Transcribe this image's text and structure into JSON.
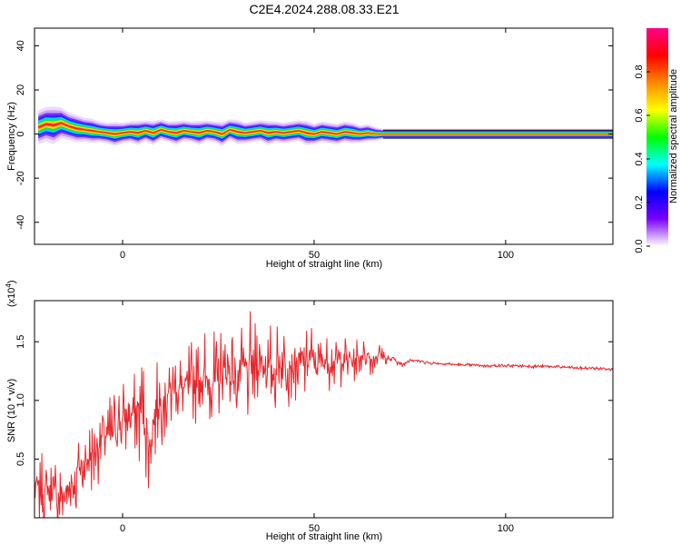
{
  "title": "C2E4.2024.288.08.33.E21",
  "chart_data": [
    {
      "type": "heatmap",
      "xlabel": "Height of straight line (km)",
      "ylabel": "Frequency (Hz)",
      "xlim": [
        -23,
        128
      ],
      "ylim": [
        -50,
        48
      ],
      "x_ticks": [
        0,
        50,
        100
      ],
      "y_ticks": [
        -40,
        -20,
        0,
        20,
        40
      ],
      "grid": false,
      "ridge": {
        "x": [
          -22,
          -20,
          -18,
          -16,
          -14,
          -12,
          -10,
          -8,
          -6,
          -4,
          -2,
          0,
          2,
          4,
          6,
          8,
          10,
          12,
          14,
          16,
          18,
          20,
          22,
          24,
          26,
          28,
          30,
          32,
          34,
          36,
          38,
          40,
          42,
          44,
          46,
          48,
          50,
          52,
          54,
          56,
          58,
          60,
          62,
          64,
          66,
          68,
          128
        ],
        "freq": [
          3,
          4.5,
          4,
          5,
          3.5,
          2.5,
          2,
          1.5,
          1,
          0.5,
          0,
          0.5,
          1,
          0.5,
          1.5,
          0.5,
          2,
          1,
          0.5,
          1.5,
          1,
          0.5,
          1.5,
          1,
          0,
          2,
          1,
          0.5,
          1,
          1.5,
          0.5,
          1,
          0.5,
          1,
          1.5,
          0.5,
          0,
          1,
          0.5,
          0,
          1,
          0.5,
          0,
          0.5,
          0,
          0,
          0
        ],
        "halfwidth": [
          5,
          5,
          5.5,
          4.5,
          4,
          4,
          3.5,
          3.5,
          3,
          3,
          3.5,
          3,
          3,
          3.5,
          3,
          3.5,
          3,
          3,
          3.5,
          3,
          3,
          3.5,
          3,
          3,
          3.5,
          3,
          3.5,
          3,
          3,
          3,
          3.5,
          3,
          3,
          3,
          3,
          3.5,
          3,
          3,
          3,
          3,
          3,
          3,
          2.5,
          2.5,
          2,
          1.5,
          1.5
        ]
      },
      "colorbar": {
        "label": "Normalized spectral amplitude",
        "range": [
          0,
          1
        ],
        "ticks": [
          0.0,
          0.2,
          0.4,
          0.6,
          0.8
        ],
        "tick_labels": [
          "0.0",
          "0.2",
          "0.4",
          "0.6",
          "0.8"
        ],
        "colors": [
          "#ffffff",
          "#7700ff",
          "#0000ff",
          "#00ffff",
          "#00ff00",
          "#ffff00",
          "#ff8800",
          "#ff0000",
          "#ff0088"
        ]
      }
    },
    {
      "type": "line",
      "xlabel": "Height of straight line (km)",
      "ylabel": "SNR (10 * v/v)",
      "scale_label": "(x10",
      "scale_exponent": "4",
      "scale_close": ")",
      "xlim": [
        -23,
        128
      ],
      "ylim": [
        0,
        18500
      ],
      "x_ticks": [
        0,
        50,
        100
      ],
      "y_ticks": [
        5000,
        10000,
        15000
      ],
      "y_tick_labels": [
        "0.5",
        "1.0",
        "1.5"
      ],
      "grid": false,
      "series": [
        {
          "color": "#e8262b",
          "x": [
            -23,
            -21,
            -19,
            -17,
            -15,
            -13,
            -11,
            -9,
            -7,
            -5,
            -3,
            -1,
            1,
            3,
            5,
            7,
            9,
            11,
            13,
            15,
            17,
            19,
            21,
            23,
            25,
            27,
            29,
            31,
            33,
            35,
            37,
            39,
            41,
            43,
            45,
            47,
            49,
            51,
            53,
            55,
            57,
            59,
            61,
            63,
            65,
            67,
            69,
            71,
            73,
            75,
            80,
            90,
            100,
            110,
            120,
            128
          ],
          "y": [
            3000,
            2000,
            2500,
            1500,
            2000,
            3000,
            4500,
            5000,
            6000,
            7000,
            7000,
            8000,
            8500,
            9000,
            9500,
            6000,
            9500,
            10500,
            11000,
            11000,
            11000,
            11500,
            12000,
            11500,
            11500,
            12500,
            12000,
            12500,
            12500,
            13000,
            13000,
            12500,
            13000,
            13000,
            13500,
            13000,
            13500,
            13000,
            13500,
            13000,
            13500,
            13500,
            13500,
            14000,
            13500,
            14000,
            13500,
            13500,
            13000,
            13500,
            13200,
            13000,
            12950,
            12900,
            12750,
            12700
          ],
          "amplitude": [
            3000,
            3500,
            3000,
            4500,
            3500,
            5000,
            4000,
            3500,
            4000,
            3500,
            4000,
            4000,
            3500,
            4000,
            5500,
            4000,
            4500,
            4500,
            4000,
            4000,
            4500,
            4000,
            4500,
            4500,
            4500,
            4500,
            4500,
            5500,
            5000,
            5000,
            4500,
            4500,
            4000,
            4000,
            3500,
            3500,
            3500,
            3500,
            3000,
            2500,
            2500,
            2000,
            2000,
            1500,
            1500,
            1000,
            700,
            400,
            300,
            200,
            200,
            200,
            200,
            200,
            200,
            200
          ]
        }
      ]
    }
  ]
}
